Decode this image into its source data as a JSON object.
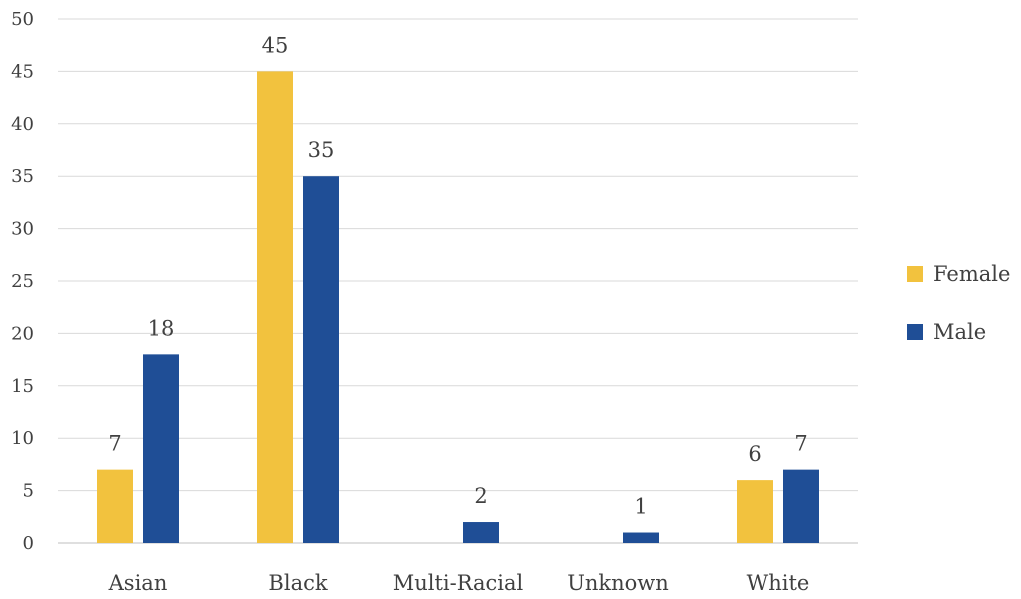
{
  "chart_data": {
    "type": "bar",
    "categories": [
      "Asian",
      "Black",
      "Multi-Racial",
      "Unknown",
      "White"
    ],
    "series": [
      {
        "name": "Female",
        "color": "#F2C23E",
        "values": [
          7,
          45,
          null,
          null,
          6
        ]
      },
      {
        "name": "Male",
        "color": "#1F4E96",
        "values": [
          18,
          35,
          2,
          1,
          7
        ]
      }
    ],
    "ylim": [
      0,
      50
    ],
    "yticks": [
      0,
      5,
      10,
      15,
      20,
      25,
      30,
      35,
      40,
      45,
      50
    ],
    "grid": true,
    "legend_position": "right",
    "data_labels": true
  }
}
